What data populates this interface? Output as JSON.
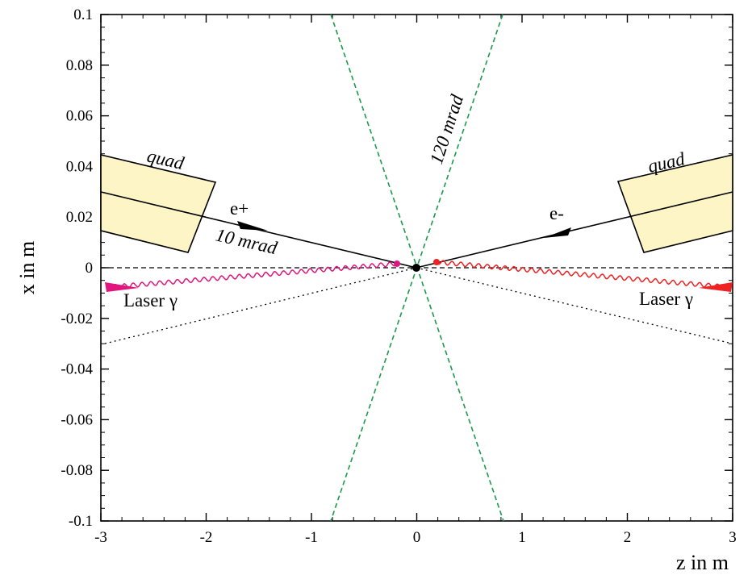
{
  "axes": {
    "xlabel": "z in m",
    "ylabel": "x  in m",
    "xlim": [
      -3,
      3
    ],
    "ylim": [
      -0.1,
      0.1
    ],
    "xticks": [
      "-3",
      "-2",
      "-1",
      "0",
      "1",
      "2",
      "3"
    ],
    "yticks": [
      "0.1",
      "0.08",
      "0.06",
      "0.04",
      "0.02",
      "0",
      "-0.02",
      "-0.04",
      "-0.06",
      "-0.08",
      "-0.1"
    ]
  },
  "labels": {
    "quad_left": "quad",
    "quad_right": "quad",
    "e_plus": "e+",
    "e_minus": "e-",
    "crossing_angle": "10 mrad",
    "cone_angle": "120 mrad",
    "laser_left": "Laser γ",
    "laser_right": "Laser γ"
  },
  "colors": {
    "quad_fill": "#fdf5c5",
    "cone": "#1a9a4a",
    "laser_left": "#e0157d",
    "laser_right": "#ee2222"
  }
}
